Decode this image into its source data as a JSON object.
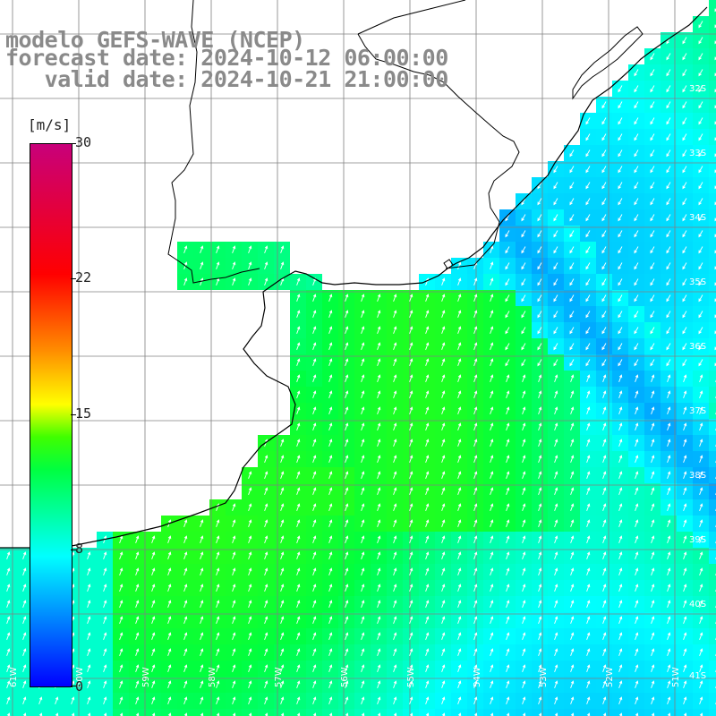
{
  "title": {
    "line1": "modelo GEFS-WAVE (NCEP)",
    "line2": "forecast date: 2024-10-12 06:00:00",
    "line3": "   valid date: 2024-10-21 21:00:00"
  },
  "colorbar": {
    "unit": "[m/s]",
    "ticks": [
      "30",
      "22",
      "15",
      "8",
      "0"
    ],
    "tick_values": [
      30,
      22,
      15,
      8,
      0
    ],
    "min": 0,
    "max": 30,
    "colors": [
      "#0000ff",
      "#00a0ff",
      "#00ffff",
      "#00ff40",
      "#40ff00",
      "#ffff00",
      "#ff8c00",
      "#ff0000",
      "#c8007a"
    ]
  },
  "map": {
    "lat_labels": [
      "32S",
      "33S",
      "34S",
      "35S",
      "36S",
      "37S",
      "38S",
      "39S",
      "40S",
      "41S"
    ],
    "lon_labels": [
      "61W",
      "60W",
      "59W",
      "58W",
      "57W",
      "56W",
      "55W",
      "54W",
      "53W",
      "52W",
      "51W"
    ],
    "grid_color": "#808080",
    "coast_color": "#000000",
    "arrow_color": "#ffffff",
    "land_color": "#ffffff"
  }
}
